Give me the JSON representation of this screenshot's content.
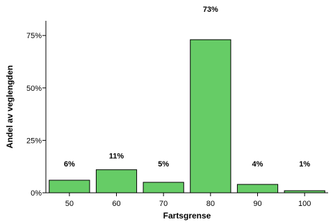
{
  "chart_data": {
    "type": "bar",
    "title": "",
    "xlabel": "Fartsgrense",
    "ylabel": "Andel av veglengden",
    "categories": [
      "50",
      "60",
      "70",
      "80",
      "90",
      "100"
    ],
    "values": [
      6,
      11,
      5,
      73,
      4,
      1
    ],
    "value_labels": [
      "6%",
      "11%",
      "5%",
      "73%",
      "4%",
      "1%"
    ],
    "y_ticks": [
      0,
      25,
      50,
      75
    ],
    "y_tick_labels": [
      "0%",
      "25%",
      "50%",
      "75%"
    ],
    "ylim": [
      0,
      82
    ],
    "grid": false,
    "legend": "none",
    "colors": {
      "bar_fill": "#66cc66",
      "bar_stroke": "#000000",
      "axis": "#000000"
    }
  }
}
